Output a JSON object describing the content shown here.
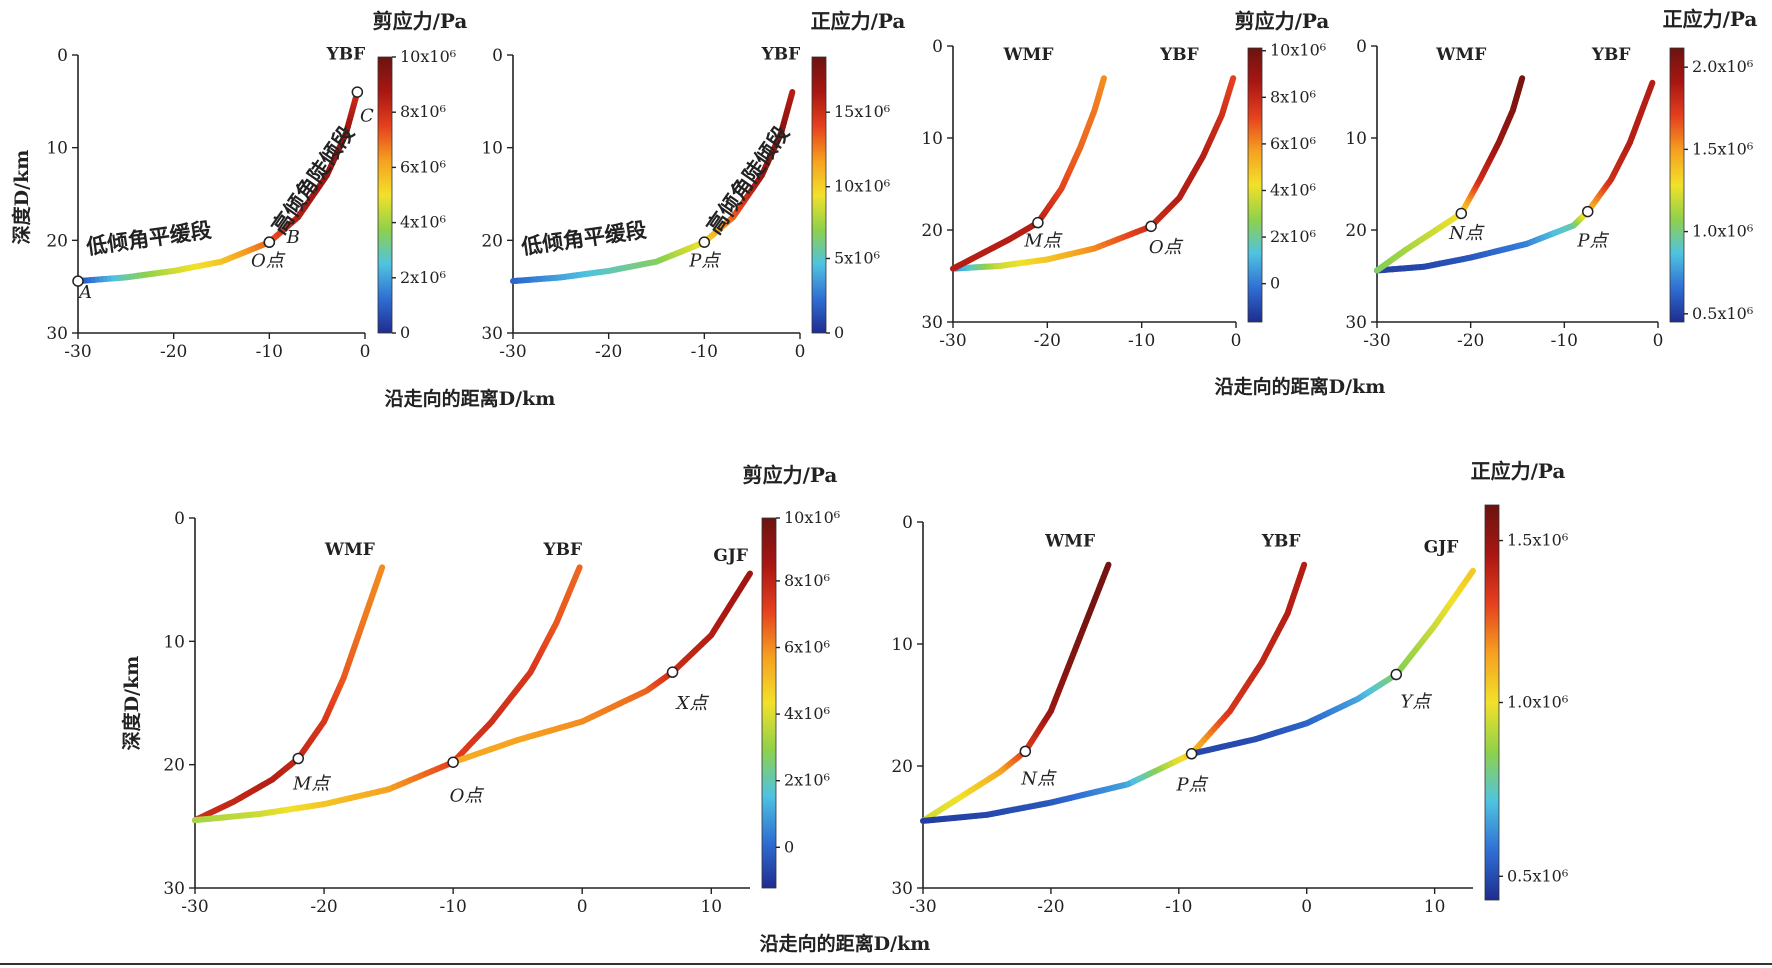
{
  "colormap": [
    "#1f2c8f",
    "#2f6fd4",
    "#4fc3e0",
    "#8fd14a",
    "#f2e12a",
    "#f6a020",
    "#e5401e",
    "#a81612",
    "#6b1410"
  ],
  "chart_data": [
    {
      "type": "line",
      "title": "剪应力/Pa",
      "xlabel": "沿走向的距离D/km",
      "ylabel": "深度D/km",
      "xlim": [
        -30,
        0
      ],
      "ylim": [
        30,
        0
      ],
      "xticks": [
        "-30",
        "-20",
        "-10",
        "0"
      ],
      "yticks": [
        "0",
        "10",
        "20",
        "30"
      ],
      "colorbar": {
        "ticks": [
          "0",
          "2x10⁶",
          "4x10⁶",
          "6x10⁶",
          "8x10⁶",
          "10x10⁶"
        ],
        "positions": [
          0,
          0.2,
          0.4,
          0.6,
          0.8,
          1.0
        ]
      },
      "faults": [
        {
          "name": "YBF",
          "label_pos": [
            -2,
            0.5
          ],
          "points": [
            [
              -30,
              24.4
            ],
            [
              -25,
              24.0
            ],
            [
              -20,
              23.3
            ],
            [
              -15,
              22.3
            ],
            [
              -10,
              20.2
            ],
            [
              -7,
              17.5
            ],
            [
              -4,
              13.0
            ],
            [
              -2,
              8.5
            ],
            [
              -0.8,
              4.0
            ]
          ],
          "values": [
            0.05,
            0.3,
            0.45,
            0.55,
            0.7,
            0.85,
            0.9,
            0.92,
            0.8
          ]
        }
      ],
      "markers": [
        {
          "label": "A",
          "x": -30,
          "y": 24.4,
          "lx": -29.2,
          "ly": 26.2
        },
        {
          "label": "B",
          "x": -10,
          "y": 20.2,
          "lx": -7.5,
          "ly": 20.3
        },
        {
          "label": "O点",
          "x": -10,
          "y": 20.2,
          "lx": -10.2,
          "ly": 22.8
        },
        {
          "label": "C",
          "x": -0.8,
          "y": 4.0,
          "lx": 0.2,
          "ly": 7.2
        }
      ],
      "segment_labels": [
        {
          "text": "低倾角平缓段",
          "x": -29,
          "y": 21.5,
          "rot": -8
        },
        {
          "text": "高倾角陡倾段",
          "x": -8.6,
          "y": 19.5,
          "rot": -55
        }
      ]
    },
    {
      "type": "line",
      "title": "正应力/Pa",
      "xlabel": "",
      "ylabel": "",
      "xlim": [
        -30,
        0
      ],
      "ylim": [
        30,
        0
      ],
      "xticks": [
        "-30",
        "-20",
        "-10",
        "0"
      ],
      "yticks": [
        "0",
        "10",
        "20",
        "30"
      ],
      "colorbar": {
        "ticks": [
          "0",
          "5x10⁶",
          "10x10⁶",
          "15x10⁶"
        ],
        "positions": [
          0,
          0.27,
          0.53,
          0.8
        ]
      },
      "faults": [
        {
          "name": "YBF",
          "label_pos": [
            -2,
            0.5
          ],
          "points": [
            [
              -30,
              24.4
            ],
            [
              -25,
              24.0
            ],
            [
              -20,
              23.3
            ],
            [
              -15,
              22.3
            ],
            [
              -10,
              20.2
            ],
            [
              -7,
              17.5
            ],
            [
              -4,
              13.0
            ],
            [
              -2,
              8.5
            ],
            [
              -0.8,
              4.0
            ]
          ],
          "values": [
            0.1,
            0.2,
            0.28,
            0.35,
            0.5,
            0.7,
            0.9,
            0.95,
            0.85
          ]
        }
      ],
      "markers": [
        {
          "label": "P点",
          "x": -10,
          "y": 20.2,
          "lx": -10,
          "ly": 22.8
        }
      ],
      "segment_labels": [
        {
          "text": "低倾角平缓段",
          "x": -29,
          "y": 21.5,
          "rot": -8
        },
        {
          "text": "高倾角陡倾段",
          "x": -8.6,
          "y": 19.5,
          "rot": -55
        }
      ]
    },
    {
      "type": "line",
      "title": "剪应力/Pa",
      "xlabel": "沿走向的距离D/km",
      "ylabel": "",
      "xlim": [
        -30,
        0
      ],
      "ylim": [
        30,
        0
      ],
      "xticks": [
        "-30",
        "-20",
        "-10",
        "0"
      ],
      "yticks": [
        "0",
        "10",
        "20",
        "30"
      ],
      "colorbar": {
        "ticks": [
          "0",
          "2x10⁶",
          "4x10⁶",
          "6x10⁶",
          "8x10⁶",
          "10x10⁶"
        ],
        "positions": [
          0.14,
          0.31,
          0.48,
          0.65,
          0.82,
          0.99
        ]
      },
      "faults": [
        {
          "name": "YBF",
          "label_pos": [
            -6,
            1.5
          ],
          "points": [
            [
              -30,
              24.2
            ],
            [
              -25,
              23.9
            ],
            [
              -20,
              23.2
            ],
            [
              -15,
              22.0
            ],
            [
              -9,
              19.6
            ],
            [
              -6,
              16.5
            ],
            [
              -3.5,
              12.0
            ],
            [
              -1.5,
              7.5
            ],
            [
              -0.3,
              3.5
            ]
          ],
          "values": [
            0.15,
            0.45,
            0.55,
            0.65,
            0.8,
            0.85,
            0.85,
            0.8,
            0.75
          ]
        },
        {
          "name": "WMF",
          "label_pos": [
            -22,
            1.5
          ],
          "points": [
            [
              -30,
              24.2
            ],
            [
              -27,
              22.6
            ],
            [
              -24,
              21.0
            ],
            [
              -21,
              19.2
            ],
            [
              -18.5,
              15.5
            ],
            [
              -16.5,
              11.0
            ],
            [
              -15,
              7.0
            ],
            [
              -14,
              3.5
            ]
          ],
          "values": [
            0.85,
            0.85,
            0.85,
            0.85,
            0.75,
            0.7,
            0.68,
            0.65
          ]
        }
      ],
      "markers": [
        {
          "label": "M点",
          "x": -21,
          "y": 19.2,
          "lx": -20.5,
          "ly": 21.8
        },
        {
          "label": "O点",
          "x": -9,
          "y": 19.6,
          "lx": -7.5,
          "ly": 22.5
        }
      ],
      "segment_labels": []
    },
    {
      "type": "line",
      "title": "正应力/Pa",
      "xlabel": "",
      "ylabel": "",
      "xlim": [
        -30,
        0
      ],
      "ylim": [
        30,
        0
      ],
      "xticks": [
        "-30",
        "-20",
        "-10",
        "0"
      ],
      "yticks": [
        "0",
        "10",
        "20",
        "30"
      ],
      "colorbar": {
        "ticks": [
          "0.5x10⁶",
          "1.0x10⁶",
          "1.5x10⁶",
          "2.0x10⁶"
        ],
        "positions": [
          0.03,
          0.33,
          0.63,
          0.93
        ]
      },
      "faults": [
        {
          "name": "YBF",
          "label_pos": [
            -5,
            1.5
          ],
          "points": [
            [
              -30,
              24.4
            ],
            [
              -25,
              24.0
            ],
            [
              -20,
              23.0
            ],
            [
              -14,
              21.5
            ],
            [
              -9,
              19.5
            ],
            [
              -7.5,
              18.0
            ],
            [
              -5,
              14.5
            ],
            [
              -3,
              10.5
            ],
            [
              -0.6,
              4.0
            ]
          ],
          "values": [
            0.04,
            0.05,
            0.08,
            0.15,
            0.3,
            0.55,
            0.8,
            0.85,
            0.85
          ]
        },
        {
          "name": "WMF",
          "label_pos": [
            -21,
            1.5
          ],
          "points": [
            [
              -30,
              24.4
            ],
            [
              -27,
              22.2
            ],
            [
              -24,
              20.2
            ],
            [
              -21,
              18.2
            ],
            [
              -19,
              14.5
            ],
            [
              -17,
              10.5
            ],
            [
              -15.5,
              7.0
            ],
            [
              -14.5,
              3.5
            ]
          ],
          "values": [
            0.35,
            0.4,
            0.45,
            0.5,
            0.8,
            0.9,
            0.95,
            0.98
          ]
        }
      ],
      "markers": [
        {
          "label": "N点",
          "x": -21,
          "y": 18.2,
          "lx": -20.5,
          "ly": 21.0
        },
        {
          "label": "P点",
          "x": -7.5,
          "y": 18.0,
          "lx": -7,
          "ly": 21.8
        }
      ],
      "segment_labels": []
    },
    {
      "type": "line",
      "title": "剪应力/Pa",
      "xlabel": "沿走向的距离D/km",
      "ylabel": "深度D/km",
      "xlim": [
        -30,
        13
      ],
      "ylim": [
        30,
        0
      ],
      "xticks": [
        "-30",
        "-20",
        "-10",
        "0",
        "10"
      ],
      "yticks": [
        "0",
        "10",
        "20",
        "30"
      ],
      "colorbar": {
        "ticks": [
          "0",
          "2x10⁶",
          "4x10⁶",
          "6x10⁶",
          "8x10⁶",
          "10x10⁶"
        ],
        "positions": [
          0.11,
          0.29,
          0.47,
          0.65,
          0.83,
          1.0
        ]
      },
      "faults": [
        {
          "name": "WMF",
          "label_pos": [
            -18,
            3
          ],
          "points": [
            [
              -30,
              24.5
            ],
            [
              -27,
              23.0
            ],
            [
              -24,
              21.2
            ],
            [
              -22,
              19.5
            ],
            [
              -20,
              16.5
            ],
            [
              -18.5,
              13.0
            ],
            [
              -17,
              8.5
            ],
            [
              -15.5,
              4.0
            ]
          ],
          "values": [
            0.8,
            0.82,
            0.85,
            0.82,
            0.78,
            0.72,
            0.68,
            0.65
          ]
        },
        {
          "name": "YBF",
          "label_pos": [
            -1.5,
            3
          ],
          "points": [
            [
              -30,
              24.5
            ],
            [
              -25,
              24.0
            ],
            [
              -20,
              23.2
            ],
            [
              -15,
              22.0
            ],
            [
              -10,
              19.8
            ],
            [
              -7,
              16.5
            ],
            [
              -4,
              12.5
            ],
            [
              -2,
              8.5
            ],
            [
              -0.2,
              4.0
            ]
          ],
          "values": [
            0.4,
            0.45,
            0.55,
            0.62,
            0.75,
            0.8,
            0.78,
            0.72,
            0.7
          ]
        },
        {
          "name": "GJF",
          "label_pos": [
            11.5,
            3.5
          ],
          "points": [
            [
              -10,
              19.8
            ],
            [
              -5,
              18.0
            ],
            [
              0,
              16.5
            ],
            [
              5,
              14.0
            ],
            [
              7,
              12.5
            ],
            [
              10,
              9.5
            ],
            [
              13,
              4.5
            ]
          ],
          "values": [
            0.6,
            0.62,
            0.65,
            0.7,
            0.8,
            0.85,
            0.9
          ]
        }
      ],
      "markers": [
        {
          "label": "M点",
          "x": -22,
          "y": 19.5,
          "lx": -21,
          "ly": 22.0
        },
        {
          "label": "O点",
          "x": -10,
          "y": 19.8,
          "lx": -9,
          "ly": 23.0
        },
        {
          "label": "X点",
          "x": 7,
          "y": 12.5,
          "lx": 8.5,
          "ly": 15.5
        }
      ],
      "segment_labels": []
    },
    {
      "type": "line",
      "title": "正应力/Pa",
      "xlabel": "",
      "ylabel": "",
      "xlim": [
        -30,
        13
      ],
      "ylim": [
        30,
        0
      ],
      "xticks": [
        "-30",
        "-20",
        "-10",
        "0",
        "10"
      ],
      "yticks": [
        "0",
        "10",
        "20",
        "30"
      ],
      "colorbar": {
        "ticks": [
          "0.5x10⁶",
          "1.0x10⁶",
          "1.5x10⁶"
        ],
        "positions": [
          0.06,
          0.5,
          0.91
        ]
      },
      "faults": [
        {
          "name": "WMF",
          "label_pos": [
            -18.5,
            2
          ],
          "points": [
            [
              -30,
              24.5
            ],
            [
              -27,
              22.5
            ],
            [
              -24,
              20.5
            ],
            [
              -22,
              18.8
            ],
            [
              -20,
              15.5
            ],
            [
              -18.5,
              11.5
            ],
            [
              -17,
              7.5
            ],
            [
              -15.5,
              3.5
            ]
          ],
          "values": [
            0.45,
            0.5,
            0.6,
            0.75,
            0.9,
            0.95,
            0.98,
            0.98
          ]
        },
        {
          "name": "YBF",
          "label_pos": [
            -2,
            2
          ],
          "points": [
            [
              -30,
              24.5
            ],
            [
              -25,
              24.0
            ],
            [
              -20,
              23.0
            ],
            [
              -14,
              21.5
            ],
            [
              -9,
              19.0
            ],
            [
              -6,
              15.5
            ],
            [
              -3.5,
              11.5
            ],
            [
              -1.5,
              7.5
            ],
            [
              -0.2,
              3.5
            ]
          ],
          "values": [
            0.03,
            0.05,
            0.08,
            0.2,
            0.55,
            0.78,
            0.82,
            0.85,
            0.85
          ]
        },
        {
          "name": "GJF",
          "label_pos": [
            10.5,
            2.5
          ],
          "points": [
            [
              -9,
              19.0
            ],
            [
              -4,
              17.8
            ],
            [
              0,
              16.5
            ],
            [
              4,
              14.5
            ],
            [
              7,
              12.5
            ],
            [
              10,
              8.5
            ],
            [
              13,
              4.0
            ]
          ],
          "values": [
            0.05,
            0.06,
            0.1,
            0.2,
            0.35,
            0.45,
            0.55
          ]
        }
      ],
      "markers": [
        {
          "label": "N点",
          "x": -22,
          "y": 18.8,
          "lx": -21,
          "ly": 21.5
        },
        {
          "label": "P点",
          "x": -9,
          "y": 19.0,
          "lx": -9,
          "ly": 22.0
        },
        {
          "label": "Y点",
          "x": 7,
          "y": 12.5,
          "lx": 8.5,
          "ly": 15.2
        }
      ],
      "segment_labels": []
    }
  ]
}
